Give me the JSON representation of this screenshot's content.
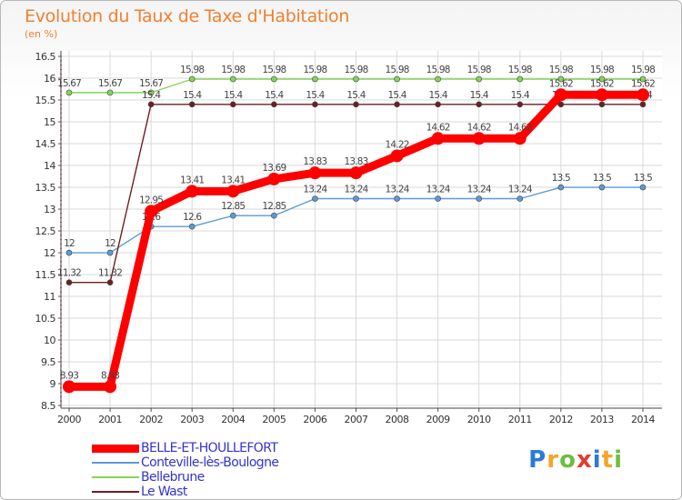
{
  "title": "Evolution du Taux de Taxe d'Habitation",
  "subtitle": "(en %)",
  "brand": {
    "p": "P",
    "r": "r",
    "o": "o",
    "x": "x",
    "i1": "i",
    "t": "t",
    "i2": "i"
  },
  "chart_data": {
    "type": "line",
    "title": "Evolution du Taux de Taxe d'Habitation",
    "ylabel": "(en %)",
    "xlabel": "",
    "ylim": [
      8.5,
      16.5
    ],
    "yticks": [
      "8.5",
      "9",
      "9.5",
      "10",
      "10.5",
      "11",
      "11.5",
      "12",
      "12.5",
      "13",
      "13.5",
      "14",
      "14.5",
      "15",
      "15.5",
      "16",
      "16.5"
    ],
    "x": [
      "2000",
      "2001",
      "2002",
      "2003",
      "2004",
      "2005",
      "2006",
      "2007",
      "2008",
      "2009",
      "2010",
      "2011",
      "2012",
      "2013",
      "2014"
    ],
    "series": [
      {
        "name": "BELLE-ET-HOULLEFORT",
        "color": "#ff0000",
        "values": [
          8.93,
          8.93,
          12.95,
          13.41,
          13.41,
          13.69,
          13.83,
          13.83,
          14.22,
          14.62,
          14.62,
          14.62,
          15.62,
          15.62,
          15.62
        ],
        "labels": [
          "8.93",
          "8.93",
          "12.95",
          "13.41",
          "13.41",
          "13.69",
          "13.83",
          "13.83",
          "14.22",
          "14.62",
          "14.62",
          "14.62",
          "15.62",
          "15.62",
          "15.62"
        ]
      },
      {
        "name": "Conteville-lès-Boulogne",
        "color": "#5b9bd5",
        "values": [
          12,
          12,
          12.6,
          12.6,
          12.85,
          12.85,
          13.24,
          13.24,
          13.24,
          13.24,
          13.24,
          13.24,
          13.5,
          13.5,
          13.5
        ],
        "labels": [
          "12",
          "12",
          "12.6",
          "12.6",
          "12.85",
          "12.85",
          "13.24",
          "13.24",
          "13.24",
          "13.24",
          "13.24",
          "13.24",
          "13.5",
          "13.5",
          "13.5"
        ]
      },
      {
        "name": "Bellebrune",
        "color": "#88d35a",
        "values": [
          15.67,
          15.67,
          15.67,
          15.98,
          15.98,
          15.98,
          15.98,
          15.98,
          15.98,
          15.98,
          15.98,
          15.98,
          15.98,
          15.98,
          15.98
        ],
        "labels": [
          "15.67",
          "15.67",
          "15.67",
          "15.98",
          "15.98",
          "15.98",
          "15.98",
          "15.98",
          "15.98",
          "15.98",
          "15.98",
          "15.98",
          "15.98",
          "15.98",
          "15.98"
        ]
      },
      {
        "name": "Le Wast",
        "color": "#6b1f25",
        "values": [
          11.32,
          11.32,
          15.4,
          15.4,
          15.4,
          15.4,
          15.4,
          15.4,
          15.4,
          15.4,
          15.4,
          15.4,
          15.4,
          15.4,
          15.4
        ],
        "labels": [
          "11.32",
          "11.32",
          "15.4",
          "15.4",
          "15.4",
          "15.4",
          "15.4",
          "15.4",
          "15.4",
          "15.4",
          "15.4",
          "15.4",
          "15.4",
          "15.4",
          "15.4"
        ]
      }
    ]
  }
}
